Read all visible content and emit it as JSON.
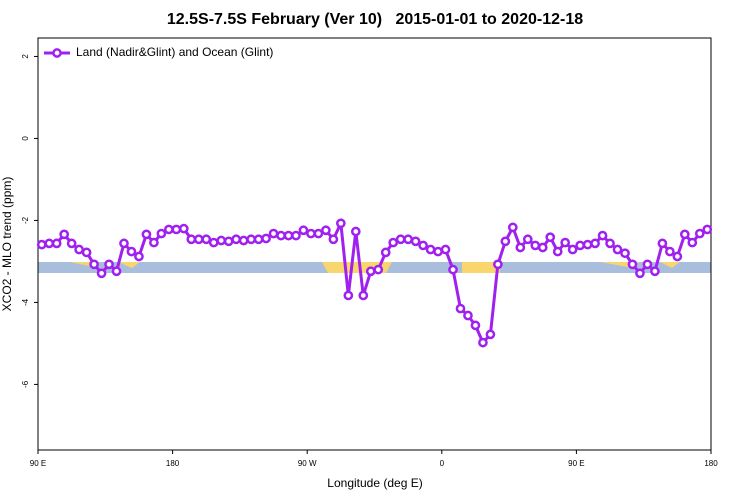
{
  "chart_data": {
    "type": "line",
    "title": "12.5S-7.5S February (Ver 10)   2015-01-01 to 2020-12-18",
    "x_label": "Longitude (deg E)",
    "y_label": "XCO2 - MLO trend (ppm)",
    "xlim": [
      90,
      540
    ],
    "xticks": [
      {
        "value": 90,
        "label": "90 E"
      },
      {
        "value": 180,
        "label": "180"
      },
      {
        "value": 270,
        "label": "90 W"
      },
      {
        "value": 360,
        "label": "0"
      },
      {
        "value": 450,
        "label": "90 E"
      },
      {
        "value": 540,
        "label": "180"
      }
    ],
    "ylim": [
      -7.6,
      2.45
    ],
    "yticks": [
      2,
      0,
      -2,
      -4,
      -6
    ],
    "legend": "top-left",
    "x": [
      92.5,
      97.5,
      102.5,
      107.5,
      112.5,
      117.5,
      122.5,
      127.5,
      132.5,
      137.5,
      142.5,
      147.5,
      152.5,
      157.5,
      162.5,
      167.5,
      172.5,
      177.5,
      182.5,
      187.5,
      192.5,
      197.5,
      202.5,
      207.5,
      212.5,
      217.5,
      222.5,
      227.5,
      232.5,
      237.5,
      242.5,
      247.5,
      252.5,
      257.5,
      262.5,
      267.5,
      272.5,
      277.5,
      282.5,
      287.5,
      292.5,
      297.5,
      302.5,
      307.5,
      312.5,
      317.5,
      322.5,
      327.5,
      332.5,
      337.5,
      342.5,
      347.5,
      352.5,
      357.5,
      362.5,
      367.5,
      372.5,
      377.5,
      382.5,
      387.5,
      392.5,
      397.5,
      402.5,
      407.5,
      412.5,
      417.5,
      422.5,
      427.5,
      432.5,
      437.5,
      442.5,
      447.5,
      452.5,
      457.5,
      462.5,
      467.5,
      472.5,
      477.5,
      482.5,
      487.5,
      492.5,
      497.5,
      502.5,
      507.5,
      512.5,
      517.5,
      522.5,
      527.5,
      532.5,
      537.5
    ],
    "series": [
      {
        "name": "Land (Nadir&Glint) and Ocean (Glint)",
        "color": "#a020f0",
        "values": [
          -2.59,
          -2.56,
          -2.56,
          -2.34,
          -2.56,
          -2.71,
          -2.78,
          -3.07,
          -3.29,
          -3.07,
          -3.24,
          -2.56,
          -2.76,
          -2.88,
          -2.34,
          -2.54,
          -2.32,
          -2.22,
          -2.22,
          -2.2,
          -2.46,
          -2.46,
          -2.46,
          -2.54,
          -2.49,
          -2.51,
          -2.46,
          -2.49,
          -2.46,
          -2.46,
          -2.44,
          -2.32,
          -2.37,
          -2.37,
          -2.37,
          -2.24,
          -2.32,
          -2.32,
          -2.24,
          -2.46,
          -2.07,
          -3.83,
          -2.27,
          -3.83,
          -3.24,
          -3.2,
          -2.78,
          -2.54,
          -2.46,
          -2.46,
          -2.51,
          -2.61,
          -2.71,
          -2.76,
          -2.71,
          -3.2,
          -4.15,
          -4.32,
          -4.56,
          -4.98,
          -4.78,
          -3.07,
          -2.51,
          -2.17,
          -2.66,
          -2.46,
          -2.61,
          -2.66,
          -2.41,
          -2.76,
          -2.54,
          -2.71,
          -2.61,
          -2.59,
          -2.56,
          -2.37,
          -2.56,
          -2.71,
          -2.8,
          -3.07,
          -3.29,
          -3.07,
          -3.24,
          -2.56,
          -2.76,
          -2.88,
          -2.34,
          -2.54,
          -2.32,
          -2.22
        ]
      }
    ]
  }
}
